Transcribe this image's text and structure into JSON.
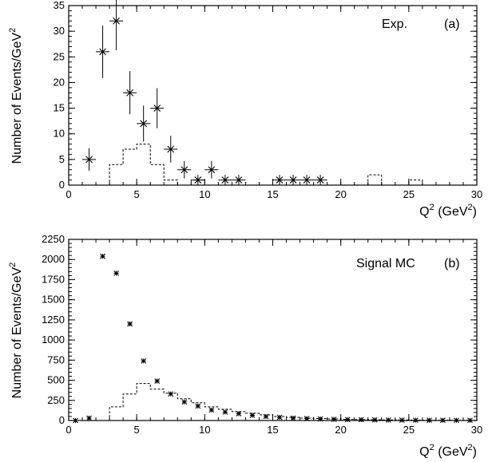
{
  "chart_data": [
    {
      "type": "scatter",
      "label_exp": "Exp.",
      "label_panel": "(a)",
      "ylabel": "Number of Events/GeV",
      "ylabel_sup": "2",
      "xlabel": "Q",
      "xlabel_sup": "2",
      "xlabel_unit_open": " (GeV",
      "xlabel_unit_sup": "2",
      "xlabel_unit_close": ")",
      "xlim": [
        0,
        30
      ],
      "ylim": [
        0,
        35
      ],
      "xticks": [
        0,
        5,
        10,
        15,
        20,
        25,
        30
      ],
      "yticks": [
        0,
        5,
        10,
        15,
        20,
        25,
        30,
        35
      ],
      "points": [
        {
          "x": 1.5,
          "y": 5,
          "err": 2.2
        },
        {
          "x": 2.5,
          "y": 26,
          "err": 5.1
        },
        {
          "x": 3.5,
          "y": 32,
          "err": 5.7
        },
        {
          "x": 4.5,
          "y": 18,
          "err": 4.2
        },
        {
          "x": 5.5,
          "y": 12,
          "err": 3.5
        },
        {
          "x": 6.5,
          "y": 15,
          "err": 3.9
        },
        {
          "x": 7.5,
          "y": 7,
          "err": 2.6
        },
        {
          "x": 8.5,
          "y": 3,
          "err": 1.7
        },
        {
          "x": 9.5,
          "y": 1,
          "err": 1.0
        },
        {
          "x": 10.5,
          "y": 3,
          "err": 1.7
        },
        {
          "x": 11.5,
          "y": 1,
          "err": 1.0
        },
        {
          "x": 12.5,
          "y": 1,
          "err": 1.0
        },
        {
          "x": 15.5,
          "y": 1,
          "err": 1.0
        },
        {
          "x": 16.5,
          "y": 1,
          "err": 1.0
        },
        {
          "x": 17.5,
          "y": 1,
          "err": 1.0
        },
        {
          "x": 18.5,
          "y": 1,
          "err": 1.0
        }
      ],
      "histogram": [
        0,
        0,
        0,
        0,
        0,
        0,
        4,
        4,
        7,
        7,
        8,
        8,
        4,
        4,
        1,
        1,
        0,
        0,
        1,
        1,
        0,
        0,
        0,
        0,
        0,
        0,
        0,
        0,
        0,
        0,
        0,
        0,
        0,
        0,
        0,
        0,
        0,
        0,
        0,
        0,
        0,
        0,
        0,
        0,
        2,
        2,
        0,
        0,
        0,
        0,
        1,
        1,
        0,
        0,
        0,
        0,
        0,
        0,
        0,
        0
      ]
    },
    {
      "type": "scatter",
      "label_exp": "Signal MC",
      "label_panel": "(b)",
      "ylabel": "Number of Events/GeV",
      "ylabel_sup": "2",
      "xlabel": "Q",
      "xlabel_sup": "2",
      "xlabel_unit_open": " (GeV",
      "xlabel_unit_sup": "2",
      "xlabel_unit_close": ")",
      "xlim": [
        0,
        30
      ],
      "ylim": [
        0,
        2250
      ],
      "xticks": [
        0,
        5,
        10,
        15,
        20,
        25,
        30
      ],
      "yticks": [
        0,
        250,
        500,
        750,
        1000,
        1250,
        1500,
        1750,
        2000,
        2250
      ],
      "points": [
        {
          "x": 0.5,
          "y": 0
        },
        {
          "x": 1.5,
          "y": 30
        },
        {
          "x": 2.5,
          "y": 2040
        },
        {
          "x": 3.5,
          "y": 1830
        },
        {
          "x": 4.5,
          "y": 1200
        },
        {
          "x": 5.5,
          "y": 740
        },
        {
          "x": 6.5,
          "y": 490
        },
        {
          "x": 7.5,
          "y": 330
        },
        {
          "x": 8.5,
          "y": 230
        },
        {
          "x": 9.5,
          "y": 180
        },
        {
          "x": 10.5,
          "y": 130
        },
        {
          "x": 11.5,
          "y": 105
        },
        {
          "x": 12.5,
          "y": 85
        },
        {
          "x": 13.5,
          "y": 65
        },
        {
          "x": 14.5,
          "y": 50
        },
        {
          "x": 15.5,
          "y": 40
        },
        {
          "x": 16.5,
          "y": 30
        },
        {
          "x": 17.5,
          "y": 25
        },
        {
          "x": 18.5,
          "y": 20
        },
        {
          "x": 19.5,
          "y": 15
        },
        {
          "x": 20.5,
          "y": 12
        },
        {
          "x": 21.5,
          "y": 10
        },
        {
          "x": 22.5,
          "y": 8
        },
        {
          "x": 23.5,
          "y": 6
        },
        {
          "x": 24.5,
          "y": 5
        },
        {
          "x": 25.5,
          "y": 4
        },
        {
          "x": 26.5,
          "y": 3
        },
        {
          "x": 27.5,
          "y": 3
        },
        {
          "x": 28.5,
          "y": 2
        },
        {
          "x": 29.5,
          "y": 2
        }
      ],
      "histogram": [
        0,
        0,
        0,
        0,
        0,
        0,
        170,
        170,
        330,
        330,
        460,
        460,
        390,
        390,
        340,
        340,
        270,
        270,
        220,
        220,
        170,
        170,
        140,
        140,
        110,
        110,
        90,
        90,
        70,
        70,
        50,
        50,
        40,
        40,
        30,
        30,
        25,
        25,
        20,
        20,
        15,
        15,
        12,
        12,
        10,
        10,
        8,
        8,
        6,
        6,
        5,
        5,
        4,
        4,
        3,
        3,
        2,
        2,
        2,
        2
      ]
    }
  ]
}
